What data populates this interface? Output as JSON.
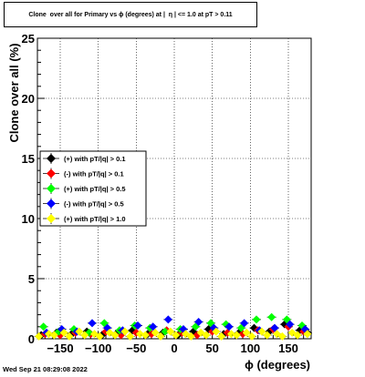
{
  "chart_data": {
    "type": "scatter",
    "title": "Clone  over all for Primary vs ϕ (degrees) at |  η | <= 1.0 at pT > 0.11",
    "xlabel": "ϕ (degrees)",
    "ylabel": "Clone  over all (%)",
    "xlim": [
      -180,
      180
    ],
    "ylim": [
      0,
      25
    ],
    "grid": true,
    "legend_position": "left, middle",
    "x_ticks": [
      {
        "value": -150,
        "label": "−150"
      },
      {
        "value": -100,
        "label": "−100"
      },
      {
        "value": -50,
        "label": "−50"
      },
      {
        "value": 0,
        "label": "0"
      },
      {
        "value": 50,
        "label": "50"
      },
      {
        "value": 100,
        "label": "100"
      },
      {
        "value": 150,
        "label": "150"
      }
    ],
    "y_ticks": [
      {
        "value": 0,
        "label": "0"
      },
      {
        "value": 5,
        "label": "5"
      },
      {
        "value": 10,
        "label": "10"
      },
      {
        "value": 15,
        "label": "15"
      },
      {
        "value": 20,
        "label": "20"
      },
      {
        "value": 25,
        "label": "25"
      }
    ],
    "series": [
      {
        "name": "(+) with pT/|q| > 0.1",
        "color": "#000000",
        "x": [
          -175,
          -155,
          -135,
          -115,
          -95,
          -75,
          -55,
          -35,
          -15,
          5,
          25,
          45,
          65,
          85,
          105,
          125,
          145,
          165,
          175
        ],
        "y": [
          0.3,
          0.5,
          0.4,
          0.6,
          0.3,
          0.5,
          0.7,
          0.4,
          0.5,
          0.3,
          0.6,
          0.8,
          0.4,
          0.5,
          0.9,
          0.6,
          1.2,
          0.7,
          0.5
        ]
      },
      {
        "name": "(-) with pT/|q| > 0.1",
        "color": "#ff0000",
        "x": [
          -170,
          -150,
          -130,
          -110,
          -90,
          -70,
          -50,
          -30,
          -10,
          10,
          30,
          50,
          70,
          90,
          110,
          130,
          150,
          170
        ],
        "y": [
          0.4,
          0.3,
          0.5,
          0.4,
          0.6,
          0.3,
          0.5,
          0.4,
          0.7,
          0.5,
          0.3,
          0.6,
          0.5,
          0.4,
          0.7,
          0.8,
          1.0,
          0.6
        ]
      },
      {
        "name": "(+) with pT/|q| > 0.5",
        "color": "#00ff00",
        "x": [
          -172,
          -152,
          -132,
          -112,
          -92,
          -72,
          -52,
          -32,
          -12,
          8,
          28,
          48,
          68,
          88,
          108,
          128,
          148,
          168
        ],
        "y": [
          1.0,
          0.6,
          0.8,
          0.5,
          1.3,
          0.7,
          1.1,
          0.9,
          0.6,
          0.8,
          1.0,
          1.3,
          1.2,
          0.9,
          1.6,
          1.8,
          1.6,
          1.1
        ]
      },
      {
        "name": "(-) with pT/|q| > 0.5",
        "color": "#0000ff",
        "x": [
          -168,
          -148,
          -128,
          -108,
          -88,
          -68,
          -48,
          -28,
          -8,
          12,
          32,
          52,
          72,
          92,
          112,
          132,
          152,
          172
        ],
        "y": [
          0.5,
          0.8,
          0.6,
          1.3,
          0.9,
          0.7,
          1.1,
          1.0,
          1.6,
          0.8,
          1.4,
          0.9,
          1.0,
          1.3,
          0.7,
          0.9,
          1.2,
          0.8
        ]
      },
      {
        "name": "(+) with pT/|q| > 1.0",
        "color": "#ffff00",
        "x": [
          -178,
          -165,
          -158,
          -145,
          -138,
          -125,
          -118,
          -105,
          -98,
          -85,
          -78,
          -65,
          -58,
          -45,
          -38,
          -25,
          -18,
          -5,
          2,
          15,
          22,
          35,
          42,
          55,
          62,
          75,
          82,
          95,
          102,
          115,
          122,
          135,
          142,
          155,
          162,
          175
        ],
        "y": [
          0.2,
          0.4,
          0.3,
          0.5,
          0.2,
          0.6,
          0.3,
          0.4,
          0.2,
          0.5,
          0.3,
          0.6,
          0.2,
          0.4,
          0.3,
          0.5,
          0.2,
          0.6,
          0.3,
          0.4,
          0.2,
          0.5,
          0.3,
          0.6,
          0.2,
          0.4,
          0.3,
          0.5,
          0.2,
          0.6,
          0.3,
          0.4,
          0.2,
          0.5,
          0.3,
          0.4
        ]
      }
    ]
  },
  "footer": {
    "timestamp": "Wed Sep 21 08:29:08 2022"
  }
}
